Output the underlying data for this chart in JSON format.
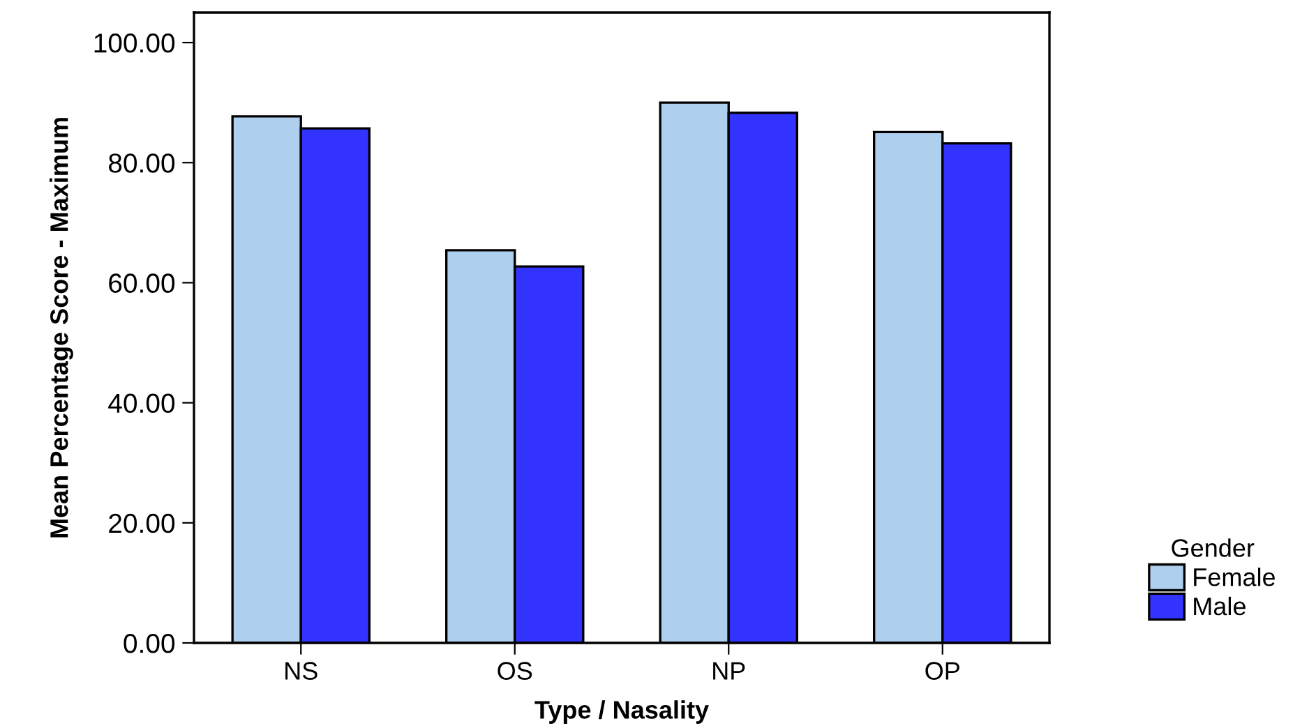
{
  "chart_data": {
    "type": "bar",
    "xlabel": "Type / Nasality",
    "ylabel": "Mean Percentage Score - Maximum",
    "legend_title": "Gender",
    "legend": "bottom right",
    "grid": false,
    "categories": [
      "NS",
      "OS",
      "NP",
      "OP"
    ],
    "series": [
      {
        "name": "Female",
        "color": "#aecfed",
        "values": [
          87.7,
          65.4,
          90.0,
          85.1
        ]
      },
      {
        "name": "Male",
        "color": "#3333ff",
        "values": [
          85.7,
          62.7,
          88.3,
          83.2
        ]
      }
    ],
    "ylim": [
      0,
      105
    ],
    "yticks": [
      {
        "value": 0,
        "label": "0.00"
      },
      {
        "value": 20,
        "label": "20.00"
      },
      {
        "value": 40,
        "label": "40.00"
      },
      {
        "value": 60,
        "label": "60.00"
      },
      {
        "value": 80,
        "label": "80.00"
      },
      {
        "value": 100,
        "label": "100.00"
      }
    ]
  }
}
